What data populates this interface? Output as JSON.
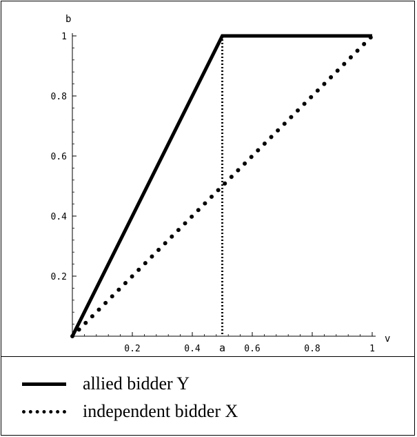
{
  "chart_data": {
    "type": "line",
    "xlabel": "v",
    "ylabel": "b",
    "xlim": [
      0,
      1
    ],
    "ylim": [
      0,
      1
    ],
    "x_ticks": [
      0.2,
      0.4,
      0.6,
      0.8,
      1
    ],
    "x_tick_labels": [
      "0.2",
      "0.4",
      "0.6",
      "0.8",
      "1"
    ],
    "y_ticks": [
      0.2,
      0.4,
      0.6,
      0.8,
      1
    ],
    "y_tick_labels": [
      "0.2",
      "0.4",
      "0.6",
      "0.8",
      "1"
    ],
    "annotations": [
      {
        "label": "a",
        "x": 0.5,
        "style": "dotted vertical line"
      }
    ],
    "series": [
      {
        "name": "allied bidder Y",
        "style": "solid",
        "color": "#000000",
        "x": [
          0,
          0.5,
          1
        ],
        "y": [
          0,
          1,
          1
        ]
      },
      {
        "name": "independent bidder X",
        "style": "dotted",
        "color": "#000000",
        "x": [
          0,
          1
        ],
        "y": [
          0,
          1
        ]
      }
    ],
    "grid": false,
    "legend_position": "bottom"
  },
  "legend": {
    "items": [
      {
        "label": "allied bidder Y",
        "style": "solid"
      },
      {
        "label": "independent bidder X",
        "style": "dotted"
      }
    ]
  }
}
